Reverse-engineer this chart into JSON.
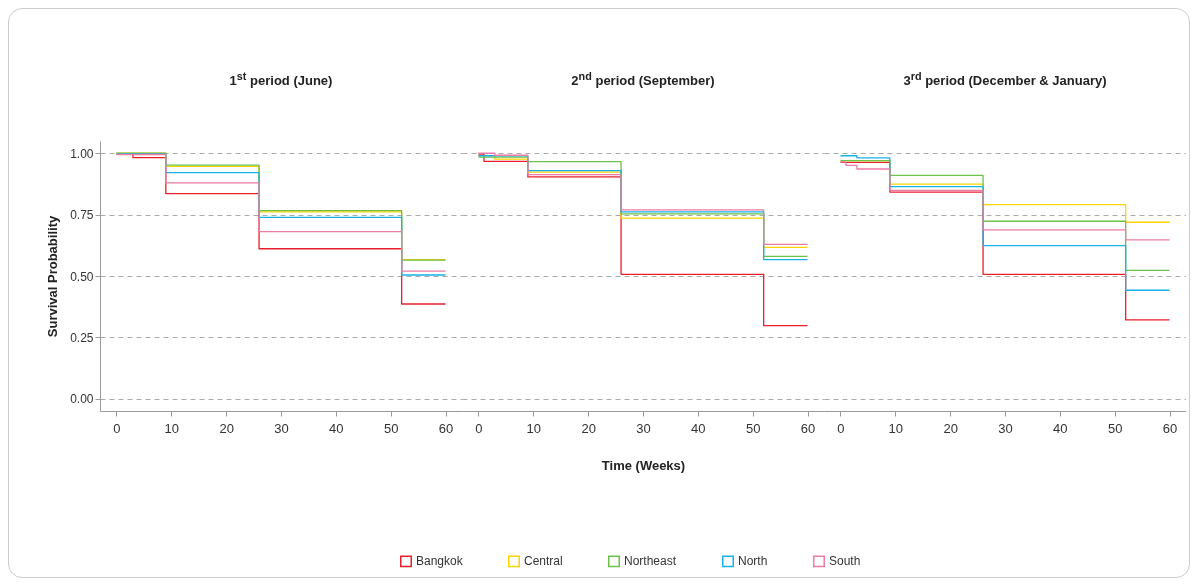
{
  "chart_data": [
    {
      "type": "step",
      "title": "1$^{st}$ period (June)",
      "ylabel": "Survival Probability",
      "xlim": [
        -3,
        63
      ],
      "xticks": [
        0,
        10,
        20,
        30,
        40,
        50,
        60
      ],
      "ylim": [
        -0.05,
        1.05
      ],
      "yticks": [
        {
          "value": 0,
          "label": "0.00"
        },
        {
          "value": 0.25,
          "label": "0.25"
        },
        {
          "value": 0.5,
          "label": "0.50"
        },
        {
          "value": 0.75,
          "label": "0.75"
        },
        {
          "value": 1,
          "label": "1.00"
        }
      ],
      "grid": "y",
      "legend": "bottom",
      "series": [
        {
          "name": "Bangkok",
          "color": "#e8202a",
          "x": [
            0,
            3,
            9,
            26,
            52,
            60
          ],
          "values": [
            0.997,
            0.982,
            0.836,
            0.611,
            0.386,
            0.386
          ]
        },
        {
          "name": "Central",
          "color": "#ffd200",
          "x": [
            0,
            9,
            26,
            52,
            60
          ],
          "values": [
            1.0,
            0.947,
            0.761,
            0.567,
            0.567
          ]
        },
        {
          "name": "Northeast",
          "color": "#6cc24a",
          "x": [
            0,
            9,
            26,
            52,
            60
          ],
          "values": [
            1.0,
            0.952,
            0.766,
            0.565,
            0.565
          ]
        },
        {
          "name": "North",
          "color": "#1ab0e8",
          "x": [
            0,
            9,
            26,
            52,
            60
          ],
          "values": [
            0.997,
            0.921,
            0.739,
            0.504,
            0.504
          ]
        },
        {
          "name": "South",
          "color": "#ee7aa6",
          "x": [
            0,
            9,
            26,
            52,
            60
          ],
          "values": [
            0.995,
            0.879,
            0.681,
            0.52,
            0.52
          ]
        }
      ]
    },
    {
      "type": "step",
      "title": "2$^{nd}$ period (September)",
      "xlabel": "Time (Weeks)",
      "xlim": [
        -3,
        63
      ],
      "xticks": [
        0,
        10,
        20,
        30,
        40,
        50,
        60
      ],
      "ylim": [
        -0.05,
        1.05
      ],
      "yticks": [
        0,
        0.25,
        0.5,
        0.75,
        1
      ],
      "grid": "y",
      "tick_labels": "x",
      "legend": "bottom",
      "series": [
        {
          "name": "Bangkok",
          "color": "#e8202a",
          "x": [
            0,
            1,
            9,
            26,
            52,
            60
          ],
          "values": [
            0.997,
            0.967,
            0.904,
            0.507,
            0.298,
            0.298
          ]
        },
        {
          "name": "Central",
          "color": "#ffd200",
          "x": [
            0,
            3,
            9,
            26,
            52,
            60
          ],
          "values": [
            0.99,
            0.976,
            0.923,
            0.736,
            0.617,
            0.617
          ]
        },
        {
          "name": "Northeast",
          "color": "#6cc24a",
          "x": [
            0,
            9,
            26,
            52,
            60
          ],
          "values": [
            0.984,
            0.966,
            0.753,
            0.58,
            0.58
          ]
        },
        {
          "name": "North",
          "color": "#1ab0e8",
          "x": [
            0,
            9,
            26,
            52,
            60
          ],
          "values": [
            0.99,
            0.929,
            0.761,
            0.567,
            0.567
          ]
        },
        {
          "name": "South",
          "color": "#ee7aa6",
          "x": [
            0,
            3,
            9,
            26,
            52,
            60
          ],
          "values": [
            1.0,
            0.992,
            0.913,
            0.769,
            0.629,
            0.629
          ]
        }
      ]
    },
    {
      "type": "step",
      "title": "3$^{rd}$ period (December & January)",
      "xlim": [
        -3,
        63
      ],
      "xticks": [
        0,
        10,
        20,
        30,
        40,
        50,
        60
      ],
      "ylim": [
        -0.05,
        1.05
      ],
      "yticks": [
        0,
        0.25,
        0.5,
        0.75,
        1
      ],
      "grid": "y",
      "tick_labels": "x",
      "legend": "bottom",
      "series": [
        {
          "name": "Bangkok",
          "color": "#e8202a",
          "x": [
            0,
            9,
            26,
            52,
            60
          ],
          "values": [
            0.963,
            0.842,
            0.507,
            0.321,
            0.321
          ]
        },
        {
          "name": "Central",
          "color": "#ffd200",
          "x": [
            0,
            9,
            26,
            52,
            60
          ],
          "values": [
            0.97,
            0.874,
            0.791,
            0.719,
            0.719
          ]
        },
        {
          "name": "Northeast",
          "color": "#6cc24a",
          "x": [
            0,
            9,
            26,
            52,
            60
          ],
          "values": [
            0.97,
            0.91,
            0.723,
            0.523,
            0.523
          ]
        },
        {
          "name": "North",
          "color": "#1ab0e8",
          "x": [
            0,
            3,
            9,
            26,
            52,
            60
          ],
          "values": [
            0.99,
            0.981,
            0.864,
            0.624,
            0.442,
            0.442
          ]
        },
        {
          "name": "South",
          "color": "#ee7aa6",
          "x": [
            0,
            1,
            3,
            9,
            26,
            52,
            60
          ],
          "values": [
            0.965,
            0.951,
            0.936,
            0.849,
            0.688,
            0.647,
            0.647
          ]
        }
      ]
    }
  ]
}
